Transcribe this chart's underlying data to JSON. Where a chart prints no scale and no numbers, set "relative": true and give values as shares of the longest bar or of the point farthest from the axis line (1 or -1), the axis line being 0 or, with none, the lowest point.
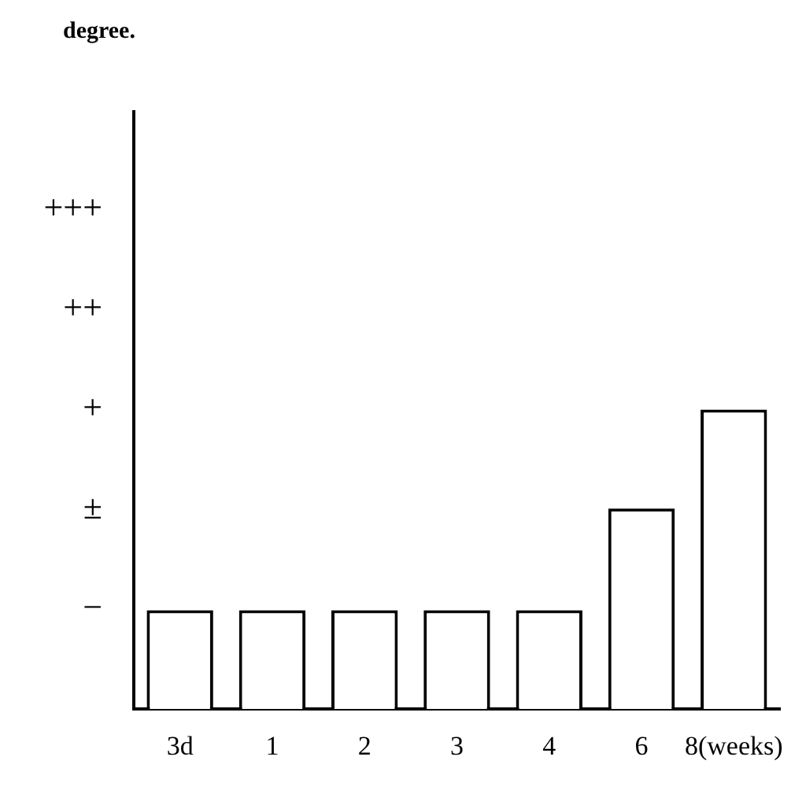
{
  "chart_data": {
    "type": "bar",
    "relative": true,
    "categories": [
      "3d",
      "1",
      "2",
      "3",
      "4",
      "6",
      "8(weeks)"
    ],
    "values": [
      0.33,
      0.33,
      0.33,
      0.33,
      0.33,
      0.67,
      1
    ],
    "color": "#ffffff",
    "annotations": [
      "degree.",
      "−",
      "±",
      "+",
      "++",
      "+++"
    ],
    "grid": false,
    "legend": false
  }
}
